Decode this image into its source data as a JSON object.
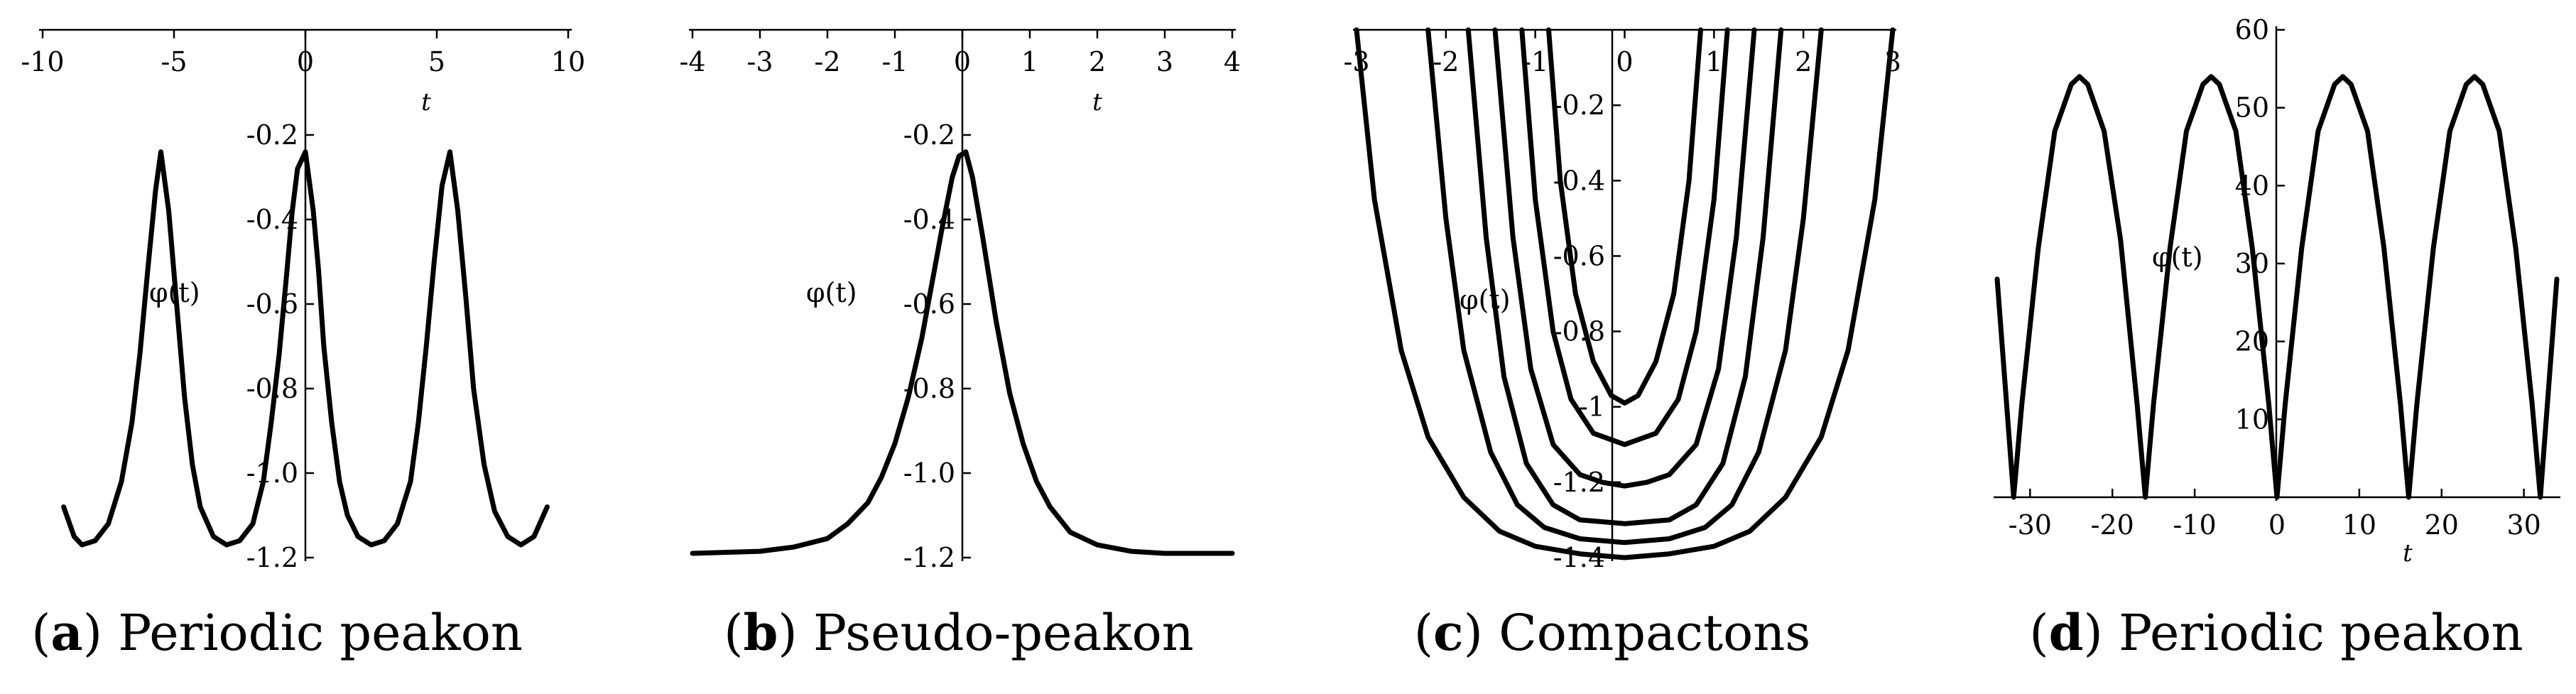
{
  "panels": [
    {
      "caption_letter": "a",
      "caption_text": "Periodic peakon",
      "chart_data": {
        "type": "line",
        "xlabel": "t",
        "ylabel": "φ(t)",
        "xlim": [
          -10,
          10
        ],
        "ylim": [
          -1.2,
          -0.2
        ],
        "xticks": [
          "-10",
          "-5",
          "0",
          "5",
          "10"
        ],
        "yticks": [
          "-1.2",
          "-1.0",
          "-0.8",
          "-0.6",
          "-0.4",
          "-0.2"
        ],
        "series": [
          {
            "x": [
              -9.2,
              -8.8,
              -8.5,
              -8.0,
              -7.5,
              -7.0,
              -6.6,
              -6.3,
              -6.0,
              -5.7,
              -5.5,
              -5.2,
              -4.9,
              -4.6,
              -4.3,
              -4.0,
              -3.5,
              -3.0,
              -2.5,
              -2.0,
              -1.6,
              -1.3,
              -1.0,
              -0.7,
              -0.5,
              -0.3,
              0.0,
              0.3,
              0.5,
              0.7,
              1.0,
              1.3,
              1.6,
              2.0,
              2.5,
              3.0,
              3.5,
              4.0,
              4.3,
              4.6,
              4.9,
              5.2,
              5.5,
              5.8,
              6.1,
              6.4,
              6.8,
              7.2,
              7.7,
              8.2,
              8.7,
              9.2
            ],
            "y": [
              -1.08,
              -1.15,
              -1.17,
              -1.16,
              -1.12,
              -1.02,
              -0.88,
              -0.72,
              -0.52,
              -0.33,
              -0.24,
              -0.38,
              -0.6,
              -0.82,
              -0.98,
              -1.08,
              -1.15,
              -1.17,
              -1.16,
              -1.12,
              -1.02,
              -0.88,
              -0.72,
              -0.52,
              -0.38,
              -0.28,
              -0.24,
              -0.38,
              -0.52,
              -0.7,
              -0.88,
              -1.02,
              -1.1,
              -1.15,
              -1.17,
              -1.16,
              -1.12,
              -1.02,
              -0.88,
              -0.7,
              -0.5,
              -0.32,
              -0.24,
              -0.38,
              -0.58,
              -0.8,
              -0.98,
              -1.09,
              -1.15,
              -1.17,
              -1.15,
              -1.08
            ]
          }
        ]
      }
    },
    {
      "caption_letter": "b",
      "caption_text": "Pseudo-peakon",
      "chart_data": {
        "type": "line",
        "xlabel": "t",
        "ylabel": "φ(t)",
        "xlim": [
          -4,
          4
        ],
        "ylim": [
          -1.2,
          -0.2
        ],
        "xticks": [
          "-4",
          "-3",
          "-2",
          "-1",
          "0",
          "1",
          "2",
          "3",
          "4"
        ],
        "yticks": [
          "-1.2",
          "-1.0",
          "-0.8",
          "-0.6",
          "-0.4",
          "-0.2"
        ],
        "series": [
          {
            "x": [
              -4.0,
              -3.0,
              -2.5,
              -2.0,
              -1.7,
              -1.4,
              -1.2,
              -1.0,
              -0.8,
              -0.6,
              -0.45,
              -0.3,
              -0.15,
              -0.05,
              0.05,
              0.15,
              0.3,
              0.5,
              0.7,
              0.9,
              1.1,
              1.3,
              1.6,
              2.0,
              2.5,
              3.0,
              4.0
            ],
            "y": [
              -1.19,
              -1.185,
              -1.175,
              -1.155,
              -1.12,
              -1.07,
              -1.01,
              -0.93,
              -0.82,
              -0.68,
              -0.55,
              -0.42,
              -0.3,
              -0.25,
              -0.24,
              -0.3,
              -0.44,
              -0.64,
              -0.81,
              -0.93,
              -1.02,
              -1.08,
              -1.14,
              -1.17,
              -1.185,
              -1.19,
              -1.19
            ]
          }
        ]
      }
    },
    {
      "caption_letter": "c",
      "caption_text": "Compactons",
      "chart_data": {
        "type": "line",
        "xlabel": "",
        "ylabel": "φ(t)",
        "xlim": [
          -3,
          3
        ],
        "ylim": [
          -1.4,
          0
        ],
        "xticks": [
          "-3",
          "-2",
          "-1",
          "0",
          "1",
          "2",
          "3"
        ],
        "yticks": [
          "-1.4",
          "-1.2",
          "-1",
          "-0.8",
          "-0.6",
          "-0.4",
          "-0.2"
        ],
        "series": [
          {
            "x": [
              -3.0,
              -2.8,
              -2.5,
              -2.2,
              -1.8,
              -1.4,
              -1.0,
              -0.5,
              0.0,
              0.5,
              1.0,
              1.4,
              1.8,
              2.2,
              2.5,
              2.8,
              3.0
            ],
            "y": [
              0.0,
              -0.45,
              -0.85,
              -1.08,
              -1.24,
              -1.33,
              -1.37,
              -1.39,
              -1.4,
              -1.39,
              -1.37,
              -1.33,
              -1.24,
              -1.08,
              -0.85,
              -0.45,
              0.0
            ]
          },
          {
            "x": [
              -2.2,
              -2.0,
              -1.8,
              -1.5,
              -1.2,
              -0.9,
              -0.5,
              0.0,
              0.5,
              0.9,
              1.2,
              1.5,
              1.8,
              2.0,
              2.2
            ],
            "y": [
              0.0,
              -0.5,
              -0.85,
              -1.12,
              -1.26,
              -1.32,
              -1.35,
              -1.36,
              -1.35,
              -1.32,
              -1.26,
              -1.12,
              -0.85,
              -0.5,
              0.0
            ]
          },
          {
            "x": [
              -1.75,
              -1.55,
              -1.35,
              -1.1,
              -0.8,
              -0.5,
              0.0,
              0.5,
              0.8,
              1.1,
              1.35,
              1.55,
              1.75
            ],
            "y": [
              0.0,
              -0.55,
              -0.92,
              -1.15,
              -1.26,
              -1.3,
              -1.31,
              -1.3,
              -1.26,
              -1.15,
              -0.92,
              -0.55,
              0.0
            ]
          },
          {
            "x": [
              -1.45,
              -1.25,
              -1.05,
              -0.8,
              -0.5,
              -0.25,
              0.0,
              0.25,
              0.5,
              0.8,
              1.05,
              1.25,
              1.45
            ],
            "y": [
              0.0,
              -0.55,
              -0.9,
              -1.1,
              -1.18,
              -1.2,
              -1.21,
              -1.2,
              -1.18,
              -1.1,
              -0.9,
              -0.55,
              0.0
            ]
          },
          {
            "x": [
              -1.15,
              -1.0,
              -0.8,
              -0.6,
              -0.35,
              0.0,
              0.35,
              0.6,
              0.8,
              1.0,
              1.15
            ],
            "y": [
              0.0,
              -0.45,
              -0.8,
              -0.98,
              -1.07,
              -1.1,
              -1.07,
              -0.98,
              -0.8,
              -0.45,
              0.0
            ]
          },
          {
            "x": [
              -0.85,
              -0.72,
              -0.55,
              -0.35,
              -0.15,
              0.0,
              0.15,
              0.35,
              0.55,
              0.72,
              0.85
            ],
            "y": [
              0.0,
              -0.4,
              -0.7,
              -0.88,
              -0.97,
              -0.99,
              -0.97,
              -0.88,
              -0.7,
              -0.4,
              0.0
            ]
          }
        ]
      }
    },
    {
      "caption_letter": "d",
      "caption_text": "Periodic peakon",
      "chart_data": {
        "type": "line",
        "xlabel": "t",
        "ylabel": "φ(t)",
        "xlim": [
          -34,
          34
        ],
        "ylim": [
          0,
          60
        ],
        "xticks": [
          "-30",
          "-20",
          "-10",
          "0",
          "10",
          "20",
          "30"
        ],
        "yticks": [
          "10",
          "20",
          "30",
          "40",
          "50",
          "60"
        ],
        "series": [
          {
            "x": [
              -34,
              -33,
              -32,
              -31,
              -29,
              -27,
              -25,
              -24,
              -23,
              -21,
              -19,
              -17,
              -16,
              -15,
              -13,
              -11,
              -9,
              -8,
              -7,
              -5,
              -3,
              -1,
              0,
              1,
              3,
              5,
              7,
              8,
              9,
              11,
              13,
              15,
              16,
              17,
              19,
              21,
              23,
              24,
              25,
              27,
              29,
              31,
              32,
              33,
              34
            ],
            "y": [
              28,
              14,
              0,
              12,
              32,
              47,
              53,
              54,
              53,
              47,
              33,
              12,
              0,
              12,
              32,
              47,
              53,
              54,
              53,
              47,
              32,
              12,
              0,
              12,
              32,
              47,
              53,
              54,
              53,
              47,
              32,
              12,
              0,
              12,
              32,
              47,
              53,
              54,
              53,
              47,
              32,
              12,
              0,
              14,
              28
            ]
          }
        ]
      }
    }
  ]
}
